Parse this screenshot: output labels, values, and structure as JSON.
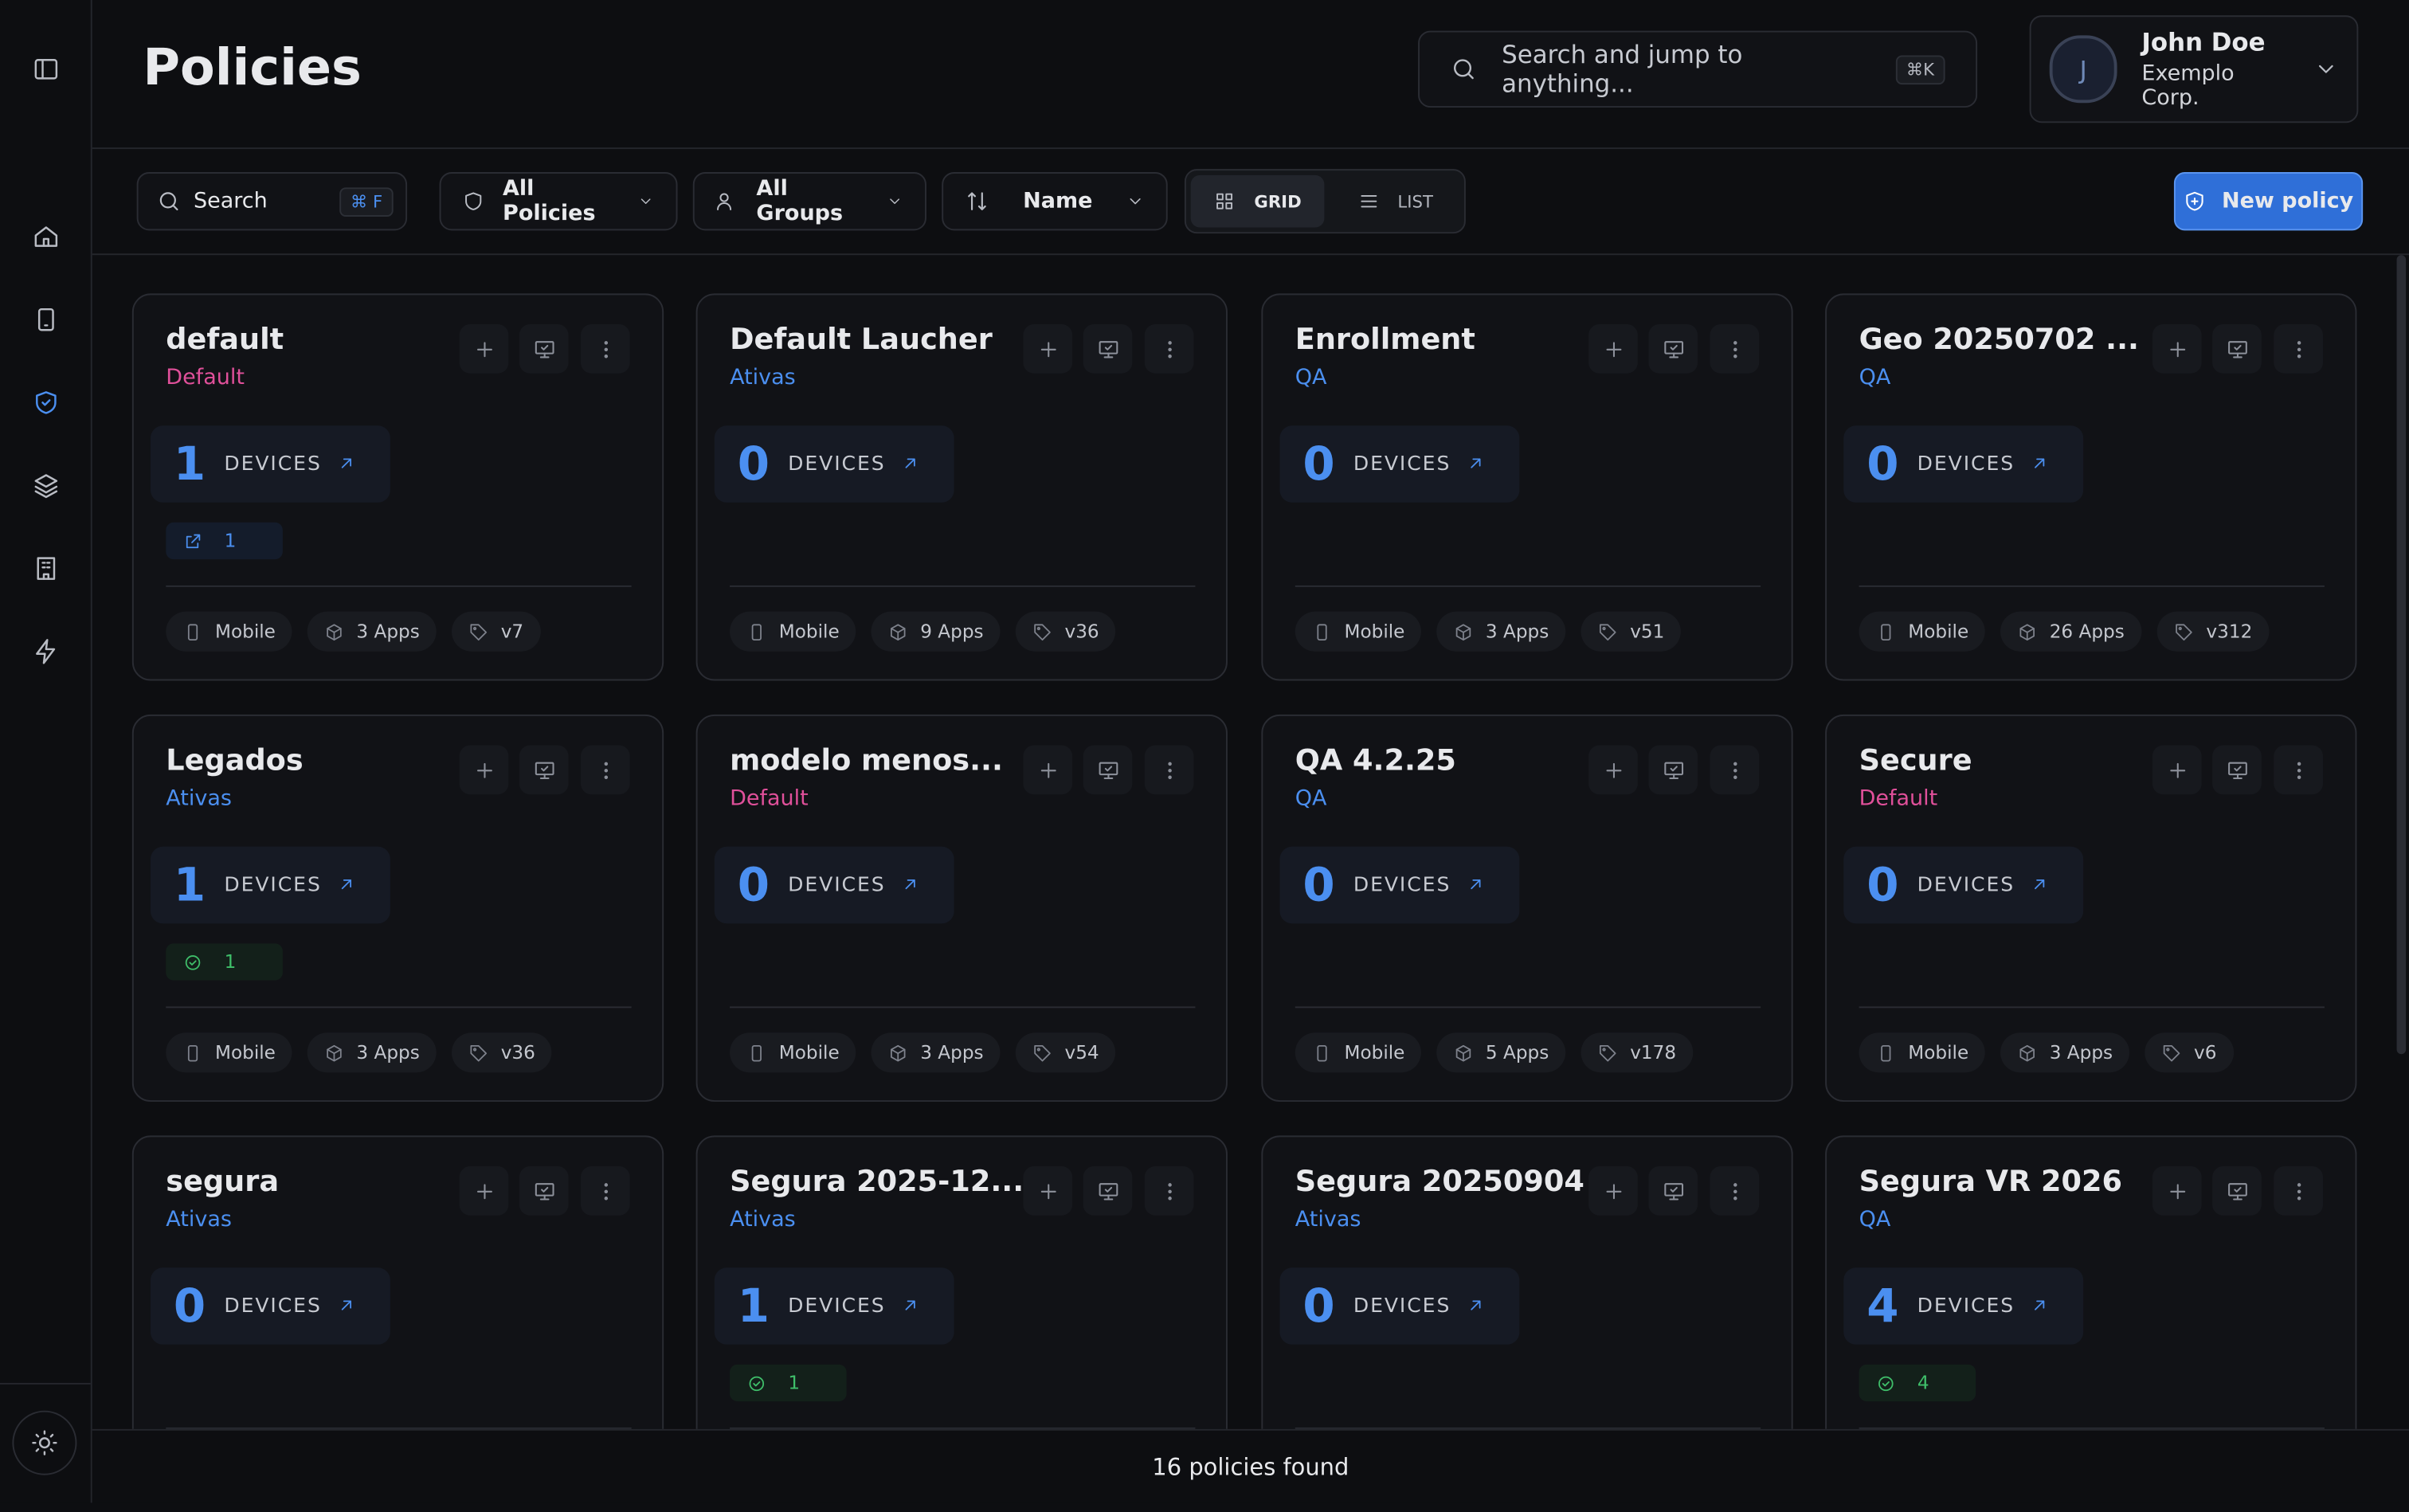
{
  "header": {
    "title": "Policies",
    "search_placeholder": "Search and jump to anything...",
    "search_shortcut": "⌘K",
    "user": {
      "initial": "J",
      "name": "John Doe",
      "company": "Exemplo Corp."
    }
  },
  "toolbar": {
    "search": "Search",
    "search_shortcut": "⌘ F",
    "policy_filter": "All Policies",
    "group_filter": "All Groups",
    "sort": "Name",
    "views": [
      "GRID",
      "LIST"
    ],
    "new_button": "New policy"
  },
  "cards": [
    {
      "name": "default",
      "group": "Default",
      "devices": "1",
      "devices_label": "DEVICES",
      "badge": {
        "icon": "link",
        "count": "1"
      },
      "platform": "Mobile",
      "apps": "3 Apps",
      "version": "v7"
    },
    {
      "name": "Default Laucher",
      "group": "Ativas",
      "devices": "0",
      "devices_label": "DEVICES",
      "platform": "Mobile",
      "apps": "9 Apps",
      "version": "v36"
    },
    {
      "name": "Enrollment",
      "group": "QA",
      "devices": "0",
      "devices_label": "DEVICES",
      "platform": "Mobile",
      "apps": "3 Apps",
      "version": "v51"
    },
    {
      "name": "Geo 20250702 ...",
      "group": "QA",
      "devices": "0",
      "devices_label": "DEVICES",
      "platform": "Mobile",
      "apps": "26 Apps",
      "version": "v312"
    },
    {
      "name": "Legados",
      "group": "Ativas",
      "devices": "1",
      "devices_label": "DEVICES",
      "badge": {
        "icon": "check",
        "count": "1"
      },
      "platform": "Mobile",
      "apps": "3 Apps",
      "version": "v36"
    },
    {
      "name": "modelo menos...",
      "group": "Default",
      "devices": "0",
      "devices_label": "DEVICES",
      "platform": "Mobile",
      "apps": "3 Apps",
      "version": "v54"
    },
    {
      "name": "QA 4.2.25",
      "group": "QA",
      "devices": "0",
      "devices_label": "DEVICES",
      "platform": "Mobile",
      "apps": "5 Apps",
      "version": "v178"
    },
    {
      "name": "Secure",
      "group": "Default",
      "devices": "0",
      "devices_label": "DEVICES",
      "platform": "Mobile",
      "apps": "3 Apps",
      "version": "v6"
    },
    {
      "name": "segura",
      "group": "Ativas",
      "devices": "0",
      "devices_label": "DEVICES"
    },
    {
      "name": "Segura 2025-12...",
      "group": "Ativas",
      "devices": "1",
      "devices_label": "DEVICES",
      "badge": {
        "icon": "check",
        "count": "1"
      }
    },
    {
      "name": "Segura 20250904",
      "group": "Ativas",
      "devices": "0",
      "devices_label": "DEVICES"
    },
    {
      "name": "Segura VR 2026",
      "group": "QA",
      "devices": "4",
      "devices_label": "DEVICES",
      "badge": {
        "icon": "check",
        "count": "4"
      }
    }
  ],
  "footer": {
    "status": "16 policies found"
  }
}
